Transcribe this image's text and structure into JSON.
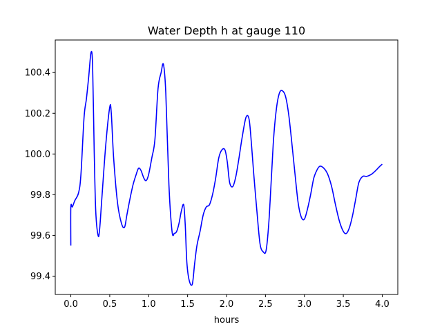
{
  "chart_data": {
    "type": "line",
    "title": "Water Depth h at gauge 110",
    "xlabel": "hours",
    "ylabel": "",
    "xlim": [
      -0.2,
      4.2
    ],
    "ylim": [
      99.31,
      100.56
    ],
    "xticks": [
      0.0,
      0.5,
      1.0,
      1.5,
      2.0,
      2.5,
      3.0,
      3.5,
      4.0
    ],
    "xtick_labels": [
      "0.0",
      "0.5",
      "1.0",
      "1.5",
      "2.0",
      "2.5",
      "3.0",
      "3.5",
      "4.0"
    ],
    "yticks": [
      99.4,
      99.6,
      99.8,
      100.0,
      100.2,
      100.4
    ],
    "ytick_labels": [
      "99.4",
      "99.6",
      "99.8",
      "100.0",
      "100.2",
      "100.4"
    ],
    "grid": false,
    "line_color": "#0000ff",
    "series": [
      {
        "x": [
          0.0,
          0.0,
          0.02,
          0.05,
          0.1,
          0.13,
          0.17,
          0.2,
          0.23,
          0.26,
          0.28,
          0.3,
          0.32,
          0.35,
          0.37,
          0.4,
          0.45,
          0.5,
          0.52,
          0.55,
          0.6,
          0.65,
          0.69,
          0.72,
          0.76,
          0.8,
          0.84,
          0.87,
          0.9,
          0.94,
          0.97,
          1.0,
          1.04,
          1.08,
          1.12,
          1.16,
          1.19,
          1.22,
          1.26,
          1.3,
          1.33,
          1.36,
          1.39,
          1.42,
          1.45,
          1.47,
          1.49,
          1.52,
          1.56,
          1.59,
          1.62,
          1.66,
          1.7,
          1.74,
          1.78,
          1.82,
          1.86,
          1.9,
          1.94,
          1.98,
          2.01,
          2.04,
          2.08,
          2.12,
          2.16,
          2.2,
          2.25,
          2.29,
          2.32,
          2.35,
          2.39,
          2.43,
          2.47,
          2.51,
          2.55,
          2.6,
          2.64,
          2.68,
          2.72,
          2.76,
          2.8,
          2.84,
          2.88,
          2.92,
          2.96,
          3.0,
          3.04,
          3.08,
          3.12,
          3.16,
          3.2,
          3.25,
          3.3,
          3.35,
          3.4,
          3.45,
          3.5,
          3.54,
          3.58,
          3.62,
          3.66,
          3.7,
          3.75,
          3.8,
          3.86,
          3.92,
          3.97,
          4.0
        ],
        "y": [
          99.55,
          99.74,
          99.74,
          99.77,
          99.81,
          99.9,
          100.18,
          100.27,
          100.38,
          100.5,
          100.43,
          100.02,
          99.72,
          99.6,
          99.63,
          99.79,
          100.05,
          100.23,
          100.2,
          99.98,
          99.76,
          99.66,
          99.64,
          99.7,
          99.78,
          99.85,
          99.9,
          99.93,
          99.92,
          99.88,
          99.87,
          99.9,
          99.98,
          100.07,
          100.32,
          100.4,
          100.44,
          100.3,
          99.85,
          99.62,
          99.61,
          99.62,
          99.66,
          99.72,
          99.75,
          99.65,
          99.47,
          99.38,
          99.36,
          99.46,
          99.55,
          99.62,
          99.7,
          99.74,
          99.75,
          99.8,
          99.88,
          99.98,
          100.02,
          100.02,
          99.96,
          99.86,
          99.84,
          99.89,
          99.98,
          100.08,
          100.18,
          100.17,
          100.05,
          99.9,
          99.72,
          99.56,
          99.52,
          99.53,
          99.7,
          100.05,
          100.22,
          100.3,
          100.31,
          100.28,
          100.19,
          100.05,
          99.9,
          99.76,
          99.69,
          99.68,
          99.73,
          99.8,
          99.88,
          99.92,
          99.94,
          99.93,
          99.9,
          99.84,
          99.75,
          99.67,
          99.62,
          99.61,
          99.64,
          99.7,
          99.78,
          99.86,
          99.89,
          99.89,
          99.9,
          99.92,
          99.94,
          99.95
        ]
      }
    ]
  }
}
